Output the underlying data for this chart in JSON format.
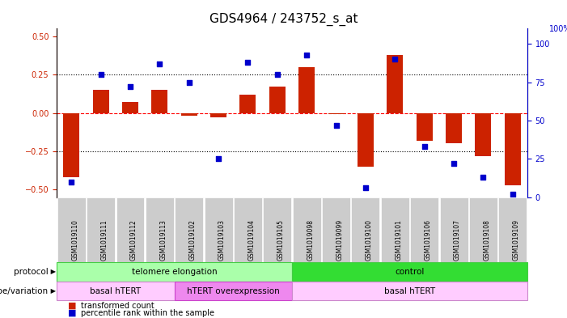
{
  "title": "GDS4964 / 243752_s_at",
  "samples": [
    "GSM1019110",
    "GSM1019111",
    "GSM1019112",
    "GSM1019113",
    "GSM1019102",
    "GSM1019103",
    "GSM1019104",
    "GSM1019105",
    "GSM1019098",
    "GSM1019099",
    "GSM1019100",
    "GSM1019101",
    "GSM1019106",
    "GSM1019107",
    "GSM1019108",
    "GSM1019109"
  ],
  "bar_values": [
    -0.42,
    0.15,
    0.07,
    0.15,
    -0.02,
    -0.03,
    0.12,
    0.17,
    0.3,
    -0.01,
    -0.35,
    0.38,
    -0.18,
    -0.2,
    -0.28,
    -0.47
  ],
  "dot_values": [
    10,
    80,
    72,
    87,
    75,
    25,
    88,
    80,
    93,
    47,
    6,
    90,
    33,
    22,
    13,
    2
  ],
  "ylim_left": [
    -0.55,
    0.55
  ],
  "ylim_right": [
    0,
    110
  ],
  "yticks_left": [
    -0.5,
    -0.25,
    0.0,
    0.25,
    0.5
  ],
  "yticks_right": [
    0,
    25,
    50,
    75,
    100
  ],
  "hlines_dotted": [
    -0.25,
    0.25
  ],
  "bar_color": "#cc2200",
  "dot_color": "#0000cc",
  "plot_bg": "#ffffff",
  "title_fontsize": 11,
  "tick_fontsize": 7,
  "protocol_row": [
    {
      "label": "telomere elongation",
      "start": 0,
      "end": 8,
      "color": "#aaffaa",
      "border_color": "#44cc44"
    },
    {
      "label": "control",
      "start": 8,
      "end": 16,
      "color": "#33dd33",
      "border_color": "#44cc44"
    }
  ],
  "genotype_row": [
    {
      "label": "basal hTERT",
      "start": 0,
      "end": 4,
      "color": "#ffccff",
      "border_color": "#cc88cc"
    },
    {
      "label": "hTERT overexpression",
      "start": 4,
      "end": 8,
      "color": "#ee88ee",
      "border_color": "#cc44cc"
    },
    {
      "label": "basal hTERT",
      "start": 8,
      "end": 16,
      "color": "#ffccff",
      "border_color": "#cc88cc"
    }
  ],
  "protocol_label": "protocol",
  "genotype_label": "genotype/variation",
  "legend_bar_label": "transformed count",
  "legend_dot_label": "percentile rank within the sample",
  "label_bg_color": "#cccccc",
  "label_edge_color": "#ffffff"
}
